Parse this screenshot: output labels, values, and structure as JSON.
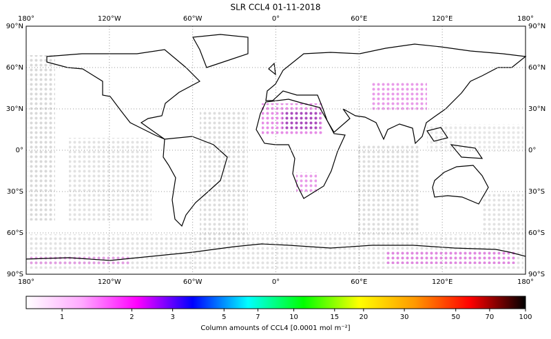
{
  "chart_data": {
    "type": "map",
    "title": "SLR CCL4 01-11-2018",
    "xlim": [
      -180,
      180
    ],
    "ylim": [
      -90,
      90
    ],
    "xticks": [
      {
        "value": -180,
        "label": "180°"
      },
      {
        "value": -120,
        "label": "120°W"
      },
      {
        "value": -60,
        "label": "60°W"
      },
      {
        "value": 0,
        "label": "0°"
      },
      {
        "value": 60,
        "label": "60°E"
      },
      {
        "value": 120,
        "label": "120°E"
      },
      {
        "value": 180,
        "label": "180°"
      }
    ],
    "yticks": [
      {
        "value": 90,
        "label": "90°N"
      },
      {
        "value": 60,
        "label": "60°N"
      },
      {
        "value": 30,
        "label": "30°N"
      },
      {
        "value": 0,
        "label": "0°"
      },
      {
        "value": -30,
        "label": "30°S"
      },
      {
        "value": -60,
        "label": "60°S"
      },
      {
        "value": -90,
        "label": "90°S"
      }
    ],
    "grid": true,
    "colorbar": {
      "label": "Column amounts of CCL4 [0.0001 mol m⁻²]",
      "log": true,
      "lim": [
        0.7,
        100
      ],
      "ticks": [
        1,
        2,
        3,
        5,
        7,
        10,
        15,
        20,
        30,
        50,
        70,
        100
      ],
      "colors": [
        "#ffffff",
        "#ffaaff",
        "#ff00ff",
        "#0000ff",
        "#00ffff",
        "#00ff00",
        "#ffff00",
        "#ff9900",
        "#ff0000",
        "#000000"
      ]
    }
  }
}
